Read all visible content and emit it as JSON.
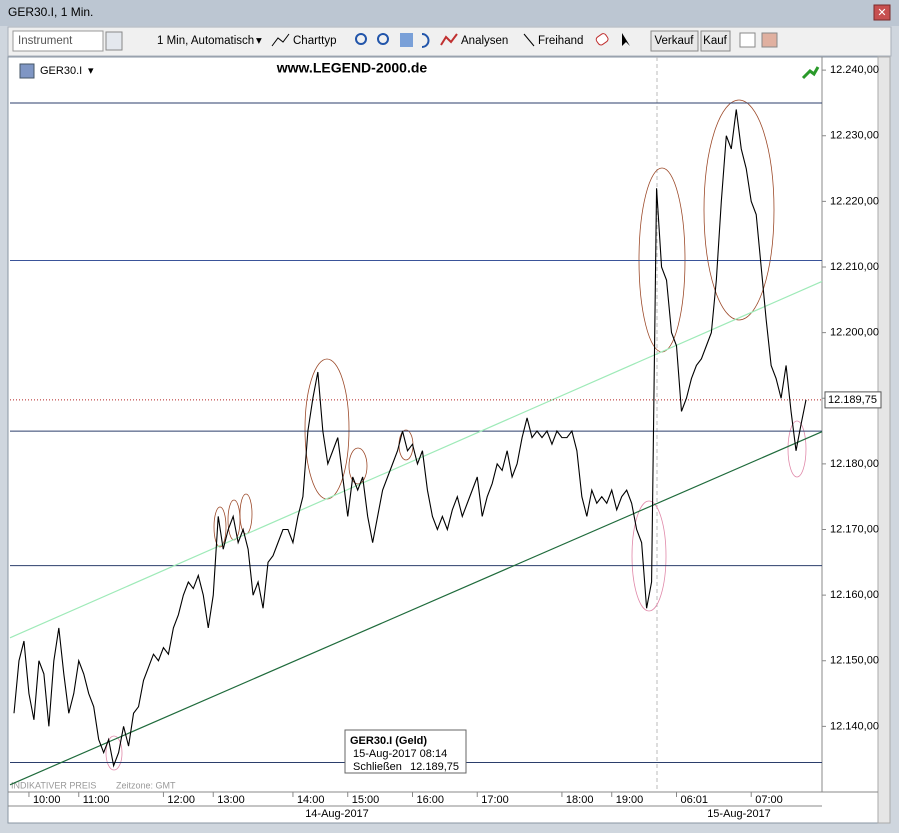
{
  "window": {
    "title": "GER30.I, 1 Min."
  },
  "toolbar": {
    "instrument": "Instrument",
    "interval": "1 Min,  Automatisch",
    "chart_type": "Charttyp",
    "analyses": "Analysen",
    "freehand": "Freihand",
    "sell": "Verkauf",
    "buy": "Kauf"
  },
  "footer": {
    "price_type": "INDIKATIVER PREIS",
    "timezone": "Zeitzone: GMT"
  },
  "tooltip": {
    "title": "GER30.I (Geld)",
    "datetime": "15-Aug-2017 08:14",
    "field": "Schließen",
    "value": "12.189,75"
  },
  "chart_data": {
    "type": "line",
    "title": "www.LEGEND-2000.de",
    "instrument": "GER30.I",
    "categories": [
      null,
      null,
      null,
      "10:00",
      null,
      null,
      null,
      null,
      null,
      null,
      null,
      null,
      null,
      "11:00",
      null,
      null,
      null,
      null,
      null,
      null,
      null,
      null,
      null,
      null,
      null,
      null,
      null,
      null,
      null,
      null,
      "12:00",
      null,
      null,
      null,
      null,
      null,
      null,
      null,
      null,
      null,
      "13:00",
      null,
      null,
      null,
      null,
      null,
      null,
      null,
      null,
      null,
      null,
      null,
      null,
      null,
      null,
      null,
      "14:00",
      null,
      null,
      null,
      null,
      null,
      null,
      null,
      null,
      null,
      null,
      "15:00",
      null,
      null,
      null,
      null,
      null,
      null,
      null,
      null,
      null,
      null,
      null,
      null,
      "16:00",
      null,
      null,
      null,
      null,
      null,
      null,
      null,
      null,
      null,
      null,
      null,
      null,
      "17:00",
      null,
      null,
      null,
      null,
      null,
      null,
      null,
      null,
      null,
      null,
      null,
      null,
      null,
      null,
      null,
      null,
      "18:00",
      null,
      null,
      null,
      null,
      null,
      null,
      null,
      null,
      null,
      "19:00",
      null,
      null,
      null,
      null,
      null,
      null,
      null,
      null,
      null,
      null,
      null,
      null,
      "06:01",
      null,
      null,
      null,
      null,
      null,
      null,
      null,
      null,
      null,
      null,
      null,
      null,
      null,
      null,
      "07:00",
      null,
      null,
      null,
      null,
      null,
      null,
      null,
      null,
      null,
      null,
      null
    ],
    "date_labels": [
      "14-Aug-2017",
      "15-Aug-2017"
    ],
    "series": [
      {
        "name": "GER30.I",
        "color": "#000000",
        "values": [
          12142,
          12150,
          12153,
          12145,
          12141,
          12150,
          12148,
          12140,
          12150,
          12155,
          12148,
          12142,
          12145,
          12150,
          12148,
          12145,
          12143,
          12138,
          12136,
          12138,
          12134,
          12136,
          12140,
          12137,
          12142,
          12143,
          12147,
          12149,
          12151,
          12150,
          12152,
          12151,
          12155,
          12157,
          12160,
          12162,
          12161,
          12163,
          12160,
          12155,
          12160,
          12172,
          12167,
          12170,
          12172,
          12168,
          12170,
          12167,
          12160,
          12162,
          12158,
          12165,
          12166,
          12168,
          12170,
          12170,
          12168,
          12172,
          12175,
          12185,
          12190,
          12194,
          12185,
          12180,
          12182,
          12184,
          12178,
          12172,
          12178,
          12176,
          12178,
          12172,
          12168,
          12172,
          12176,
          12178,
          12180,
          12182,
          12185,
          12182,
          12183,
          12180,
          12182,
          12176,
          12172,
          12170,
          12172,
          12170,
          12173,
          12175,
          12172,
          12174,
          12176,
          12178,
          12172,
          12175,
          12177,
          12180,
          12179,
          12182,
          12178,
          12180,
          12184,
          12187,
          12184,
          12185,
          12184,
          12185,
          12183,
          12185,
          12184,
          12184,
          12185,
          12182,
          12175,
          12172,
          12176,
          12174,
          12175,
          12174,
          12176,
          12173,
          12175,
          12176,
          12174,
          12170,
          12168,
          12158,
          12162,
          12222,
          12210,
          12208,
          12200,
          12198,
          12188,
          12190,
          12193,
          12195,
          12196,
          12198,
          12200,
          12208,
          12220,
          12230,
          12228,
          12234,
          12228,
          12225,
          12220,
          12218,
          12210,
          12202,
          12195,
          12193,
          12190,
          12195,
          12188,
          12182,
          12186,
          12189.75
        ]
      }
    ],
    "ylim": [
      12130,
      12242
    ],
    "yticks": [
      {
        "value": 12140,
        "label": "12.140,00"
      },
      {
        "value": 12150,
        "label": "12.150,00"
      },
      {
        "value": 12160,
        "label": "12.160,00"
      },
      {
        "value": 12170,
        "label": "12.170,00"
      },
      {
        "value": 12180,
        "label": "12.180,00"
      },
      {
        "value": 12190,
        "label": "12.190,00"
      },
      {
        "value": 12200,
        "label": "12.200,00"
      },
      {
        "value": 12210,
        "label": "12.210,00"
      },
      {
        "value": 12220,
        "label": "12.220,00"
      },
      {
        "value": 12230,
        "label": "12.230,00"
      },
      {
        "value": 12240,
        "label": "12.240,00"
      }
    ],
    "horizontal_lines": [
      {
        "value": 12235,
        "color": "#2b3e6b"
      },
      {
        "value": 12211,
        "color": "#3a5499"
      },
      {
        "value": 12185,
        "color": "#2b3e6b"
      },
      {
        "value": 12164.5,
        "color": "#2b3e6b"
      },
      {
        "value": 12134.5,
        "color": "#2b3e6b"
      }
    ],
    "trend_lines": [
      {
        "values": [
          12153.5,
          12207.8
        ],
        "color": "#9eeab8"
      },
      {
        "values": [
          12131.1,
          12184.9
        ],
        "color": "#1f6b3c"
      }
    ],
    "last_price": {
      "value": 12189.75,
      "label": "12.189,75",
      "color": "#b22222"
    }
  }
}
